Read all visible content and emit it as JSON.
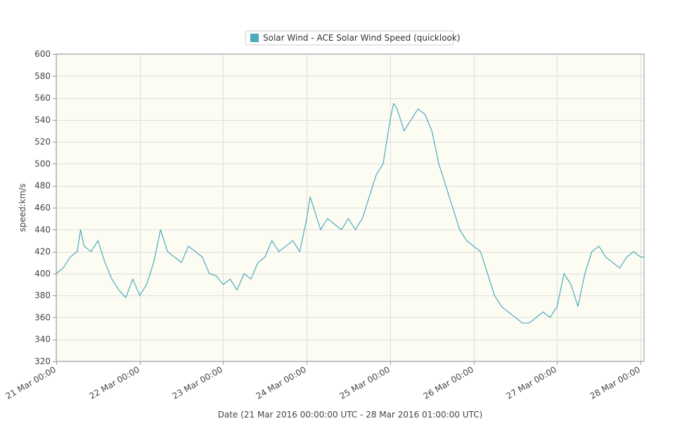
{
  "colors": {
    "series": "#4aabbd",
    "plot_background": "#fdfcf3",
    "grid": "#dddddd",
    "axis": "#999999"
  },
  "chart_data": {
    "type": "line",
    "title": "",
    "xlabel": "Date (21 Mar 2016 00:00:00 UTC - 28 Mar 2016 01:00:00 UTC)",
    "ylabel": "speed:km/s",
    "ylim": [
      320,
      600
    ],
    "yticks": [
      320,
      340,
      360,
      380,
      400,
      420,
      440,
      460,
      480,
      500,
      520,
      540,
      560,
      580,
      600
    ],
    "xlim_hours": [
      0,
      169
    ],
    "xticks": [
      {
        "hour": 0,
        "label": "21 Mar 00:00"
      },
      {
        "hour": 24,
        "label": "22 Mar 00:00"
      },
      {
        "hour": 48,
        "label": "23 Mar 00:00"
      },
      {
        "hour": 72,
        "label": "24 Mar 00:00"
      },
      {
        "hour": 96,
        "label": "25 Mar 00:00"
      },
      {
        "hour": 120,
        "label": "26 Mar 00:00"
      },
      {
        "hour": 144,
        "label": "27 Mar 00:00"
      },
      {
        "hour": 168,
        "label": "28 Mar 00:00"
      }
    ],
    "legend": {
      "position": "top-center"
    },
    "grid": true,
    "series": [
      {
        "name": "Solar Wind - ACE Solar Wind Speed (quicklook)",
        "x_hours": [
          0,
          2,
          4,
          6,
          7,
          8,
          10,
          12,
          14,
          16,
          18,
          20,
          22,
          24,
          26,
          28,
          30,
          32,
          34,
          36,
          38,
          40,
          42,
          44,
          46,
          48,
          50,
          52,
          54,
          56,
          58,
          60,
          62,
          64,
          66,
          68,
          70,
          72,
          73,
          74,
          76,
          78,
          80,
          82,
          84,
          86,
          88,
          90,
          92,
          94,
          95,
          96,
          97,
          98,
          100,
          102,
          104,
          106,
          108,
          110,
          112,
          114,
          116,
          118,
          120,
          122,
          124,
          126,
          128,
          130,
          132,
          134,
          136,
          138,
          140,
          142,
          144,
          145,
          146,
          148,
          150,
          152,
          154,
          156,
          158,
          160,
          162,
          164,
          166,
          168,
          169
        ],
        "values": [
          400,
          405,
          415,
          420,
          440,
          425,
          420,
          430,
          410,
          395,
          385,
          378,
          395,
          380,
          390,
          410,
          440,
          420,
          415,
          410,
          425,
          420,
          415,
          400,
          398,
          390,
          395,
          385,
          400,
          395,
          410,
          415,
          430,
          420,
          425,
          430,
          420,
          450,
          470,
          460,
          440,
          450,
          445,
          440,
          450,
          440,
          450,
          470,
          490,
          500,
          520,
          540,
          555,
          550,
          530,
          540,
          550,
          545,
          530,
          500,
          480,
          460,
          440,
          430,
          425,
          420,
          400,
          380,
          370,
          365,
          360,
          355,
          355,
          360,
          365,
          360,
          370,
          385,
          400,
          390,
          370,
          400,
          420,
          425,
          415,
          410,
          405,
          415,
          420,
          415,
          415
        ]
      }
    ]
  }
}
